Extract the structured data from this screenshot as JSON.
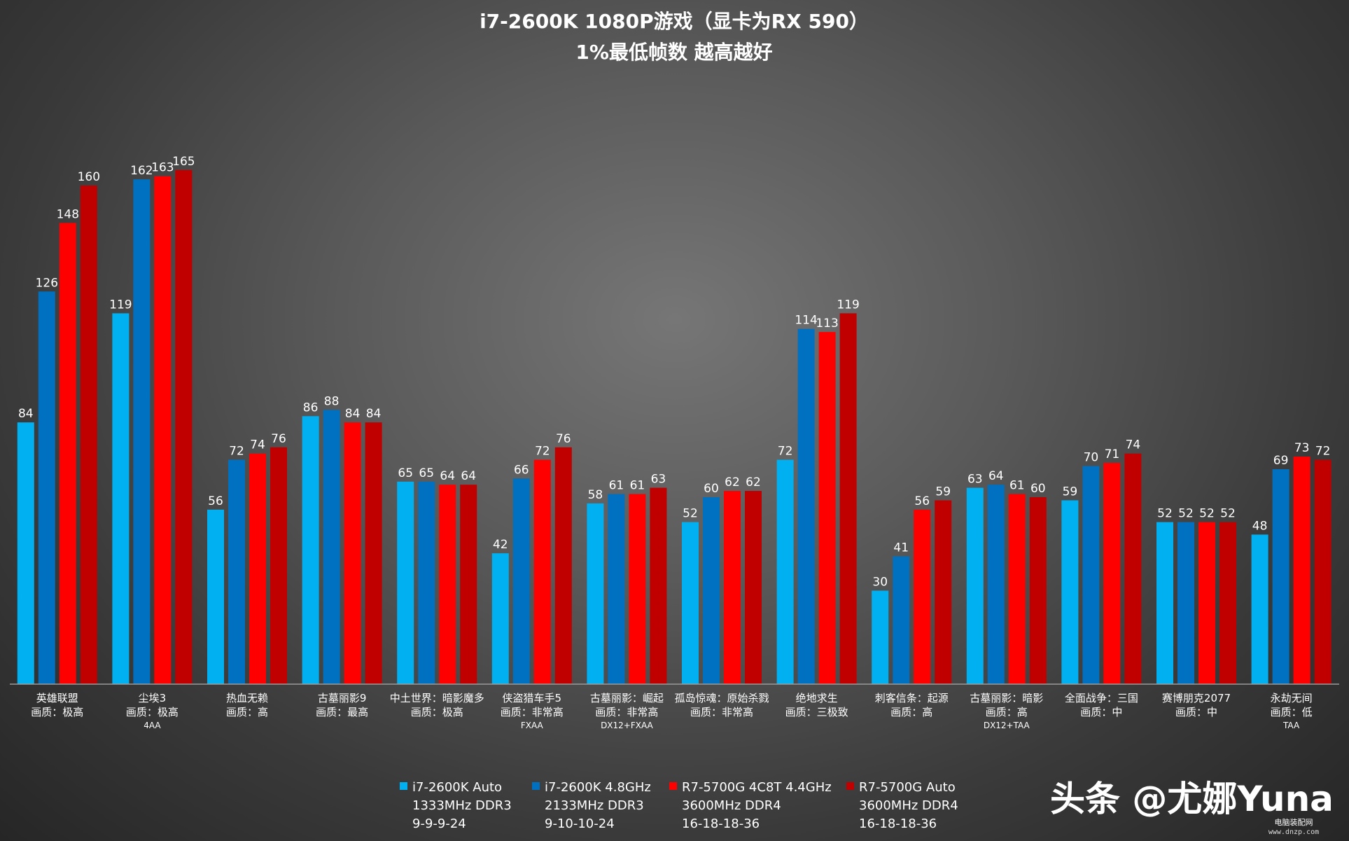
{
  "chart_data": {
    "type": "bar",
    "title": "i7-2600K 1080P游戏（显卡为RX 590）",
    "subtitle": "1%最低帧数 越高越好",
    "categories": [
      [
        "英雄联盟",
        "画质：极高"
      ],
      [
        "尘埃3",
        "画质：极高",
        "4AA"
      ],
      [
        "热血无赖",
        "画质：高"
      ],
      [
        "古墓丽影9",
        "画质：最高"
      ],
      [
        "中土世界：暗影魔多",
        "画质：极高"
      ],
      [
        "侠盗猎车手5",
        "画质：非常高",
        "FXAA"
      ],
      [
        "古墓丽影：崛起",
        "画质：非常高",
        "DX12+FXAA"
      ],
      [
        "孤岛惊魂：原始杀戮",
        "画质：非常高"
      ],
      [
        "绝地求生",
        "画质：三极致"
      ],
      [
        "刺客信条：起源",
        "画质：高"
      ],
      [
        "古墓丽影：暗影",
        "画质：高",
        "DX12+TAA"
      ],
      [
        "全面战争：三国",
        "画质：中"
      ],
      [
        "赛博朋克2077",
        "画质：中"
      ],
      [
        "永劫无间",
        "画质：低",
        "TAA"
      ]
    ],
    "series": [
      {
        "name": [
          "i7-2600K Auto",
          "1333MHz DDR3",
          "9-9-9-24"
        ],
        "color": "#00b0f0",
        "values": [
          84,
          119,
          56,
          86,
          65,
          42,
          58,
          52,
          72,
          30,
          63,
          59,
          52,
          48
        ]
      },
      {
        "name": [
          "i7-2600K 4.8GHz",
          "2133MHz DDR3",
          "9-10-10-24"
        ],
        "color": "#0070c0",
        "values": [
          126,
          162,
          72,
          88,
          65,
          66,
          61,
          60,
          114,
          41,
          64,
          70,
          52,
          69
        ]
      },
      {
        "name": [
          "R7-5700G 4C8T 4.4GHz",
          "3600MHz DDR4",
          "16-18-18-36"
        ],
        "color": "#ff0000",
        "values": [
          148,
          163,
          74,
          84,
          64,
          72,
          61,
          62,
          113,
          56,
          61,
          71,
          52,
          73
        ]
      },
      {
        "name": [
          "R7-5700G Auto",
          "3600MHz DDR4",
          "16-18-18-36"
        ],
        "color": "#c00000",
        "values": [
          160,
          165,
          76,
          84,
          64,
          76,
          63,
          62,
          119,
          59,
          60,
          74,
          52,
          72
        ]
      }
    ],
    "ylim": [
      0,
      180
    ],
    "grid": false,
    "legend": "bottom"
  },
  "watermark": {
    "text": "头条 @尤娜Yuna",
    "site_name": "电脑装配网",
    "site_url": "www.dnzp.com"
  }
}
